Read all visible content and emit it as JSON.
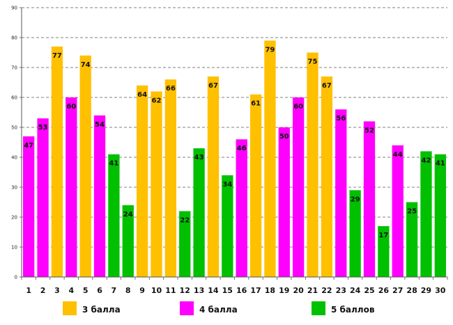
{
  "chart_data": {
    "type": "bar",
    "title": "",
    "xlabel": "",
    "ylabel": "",
    "ylim": [
      0,
      90
    ],
    "yticks": [
      0,
      10,
      20,
      30,
      40,
      50,
      60,
      70,
      80,
      90
    ],
    "grid": true,
    "categories": [
      "1",
      "2",
      "3",
      "4",
      "5",
      "6",
      "7",
      "8",
      "9",
      "10",
      "11",
      "12",
      "13",
      "14",
      "15",
      "16",
      "17",
      "18",
      "19",
      "20",
      "21",
      "22",
      "23",
      "24",
      "25",
      "26",
      "27",
      "28",
      "29",
      "30"
    ],
    "values": [
      47,
      53,
      77,
      60,
      74,
      54,
      41,
      24,
      64,
      62,
      66,
      22,
      43,
      67,
      34,
      46,
      61,
      79,
      50,
      60,
      75,
      67,
      56,
      29,
      52,
      17,
      44,
      25,
      42,
      41
    ],
    "groups": [
      "4 балла",
      "4 балла",
      "3 балла",
      "4 балла",
      "3 балла",
      "4 балла",
      "5 баллов",
      "5 баллов",
      "3 балла",
      "3 балла",
      "3 балла",
      "5 баллов",
      "5 баллов",
      "3 балла",
      "5 баллов",
      "4 балла",
      "3 балла",
      "3 балла",
      "4 балла",
      "4 балла",
      "3 балла",
      "3 балла",
      "4 балла",
      "5 баллов",
      "4 балла",
      "5 баллов",
      "4 балла",
      "5 баллов",
      "5 баллов",
      "5 баллов"
    ],
    "legend": [
      {
        "name": "3 балла",
        "color": "#FFC000"
      },
      {
        "name": "4 балла",
        "color": "#FF00FF"
      },
      {
        "name": "5 баллов",
        "color": "#00C000"
      }
    ],
    "legend_position": "bottom"
  }
}
